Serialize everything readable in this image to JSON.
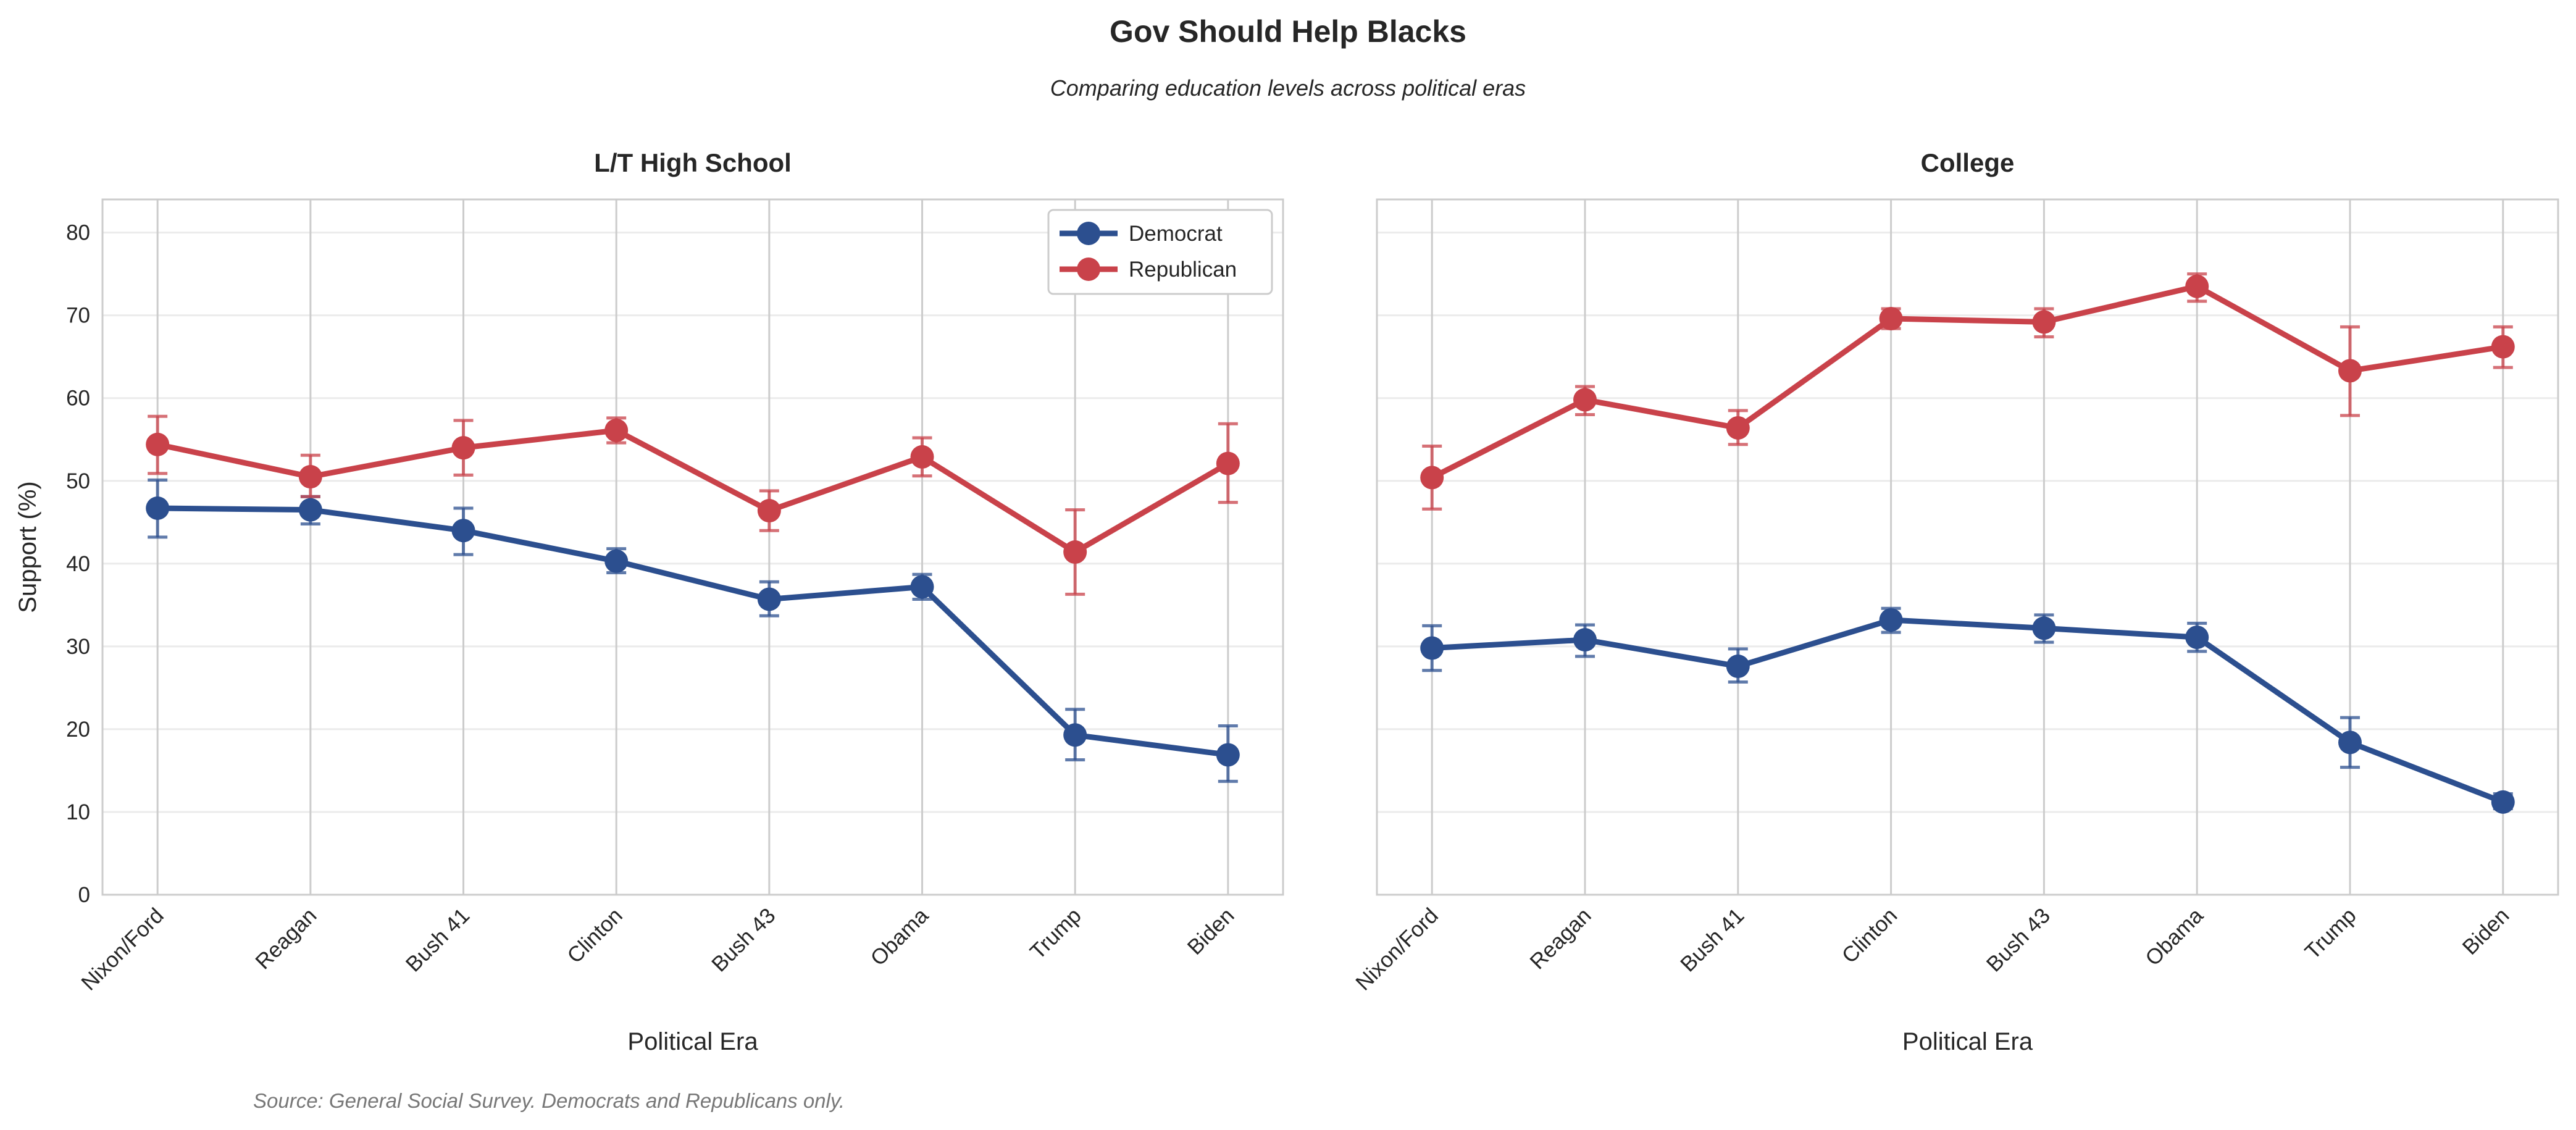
{
  "chart_data": {
    "type": "line",
    "title": "Gov Should Help Blacks",
    "subtitle": "Comparing education levels across political eras",
    "source": "Source: General Social Survey. Democrats and Republicans only.",
    "colors": {
      "Democrat": "#2c4f8f",
      "Republican": "#c9424a"
    },
    "shared_ylabel": "Support (%)",
    "ylim": [
      0,
      84
    ],
    "yticks": [
      0,
      10,
      20,
      30,
      40,
      50,
      60,
      70,
      80
    ],
    "grid": true,
    "legend": {
      "placement": "top-right",
      "panel": 0,
      "entries": [
        "Democrat",
        "Republican"
      ]
    },
    "panels": [
      {
        "title": "L/T High School",
        "xlabel": "Political Era",
        "categories": [
          "Nixon/Ford",
          "Reagan",
          "Bush 41",
          "Clinton",
          "Bush 43",
          "Obama",
          "Trump",
          "Biden"
        ],
        "series": [
          {
            "name": "Democrat",
            "values": [
              46.7,
              46.5,
              44.0,
              40.3,
              35.7,
              37.2,
              19.3,
              16.9
            ],
            "err_low": [
              43.2,
              44.8,
              41.1,
              38.9,
              33.7,
              35.7,
              16.3,
              13.7
            ],
            "err_high": [
              50.1,
              48.1,
              46.7,
              41.8,
              37.8,
              38.7,
              22.4,
              20.4
            ]
          },
          {
            "name": "Republican",
            "values": [
              54.4,
              50.5,
              54.0,
              56.1,
              46.4,
              52.9,
              41.4,
              52.1
            ],
            "err_low": [
              50.9,
              48.1,
              50.7,
              54.6,
              44.0,
              50.6,
              36.3,
              47.4
            ],
            "err_high": [
              57.8,
              53.1,
              57.3,
              57.6,
              48.8,
              55.2,
              46.5,
              56.9
            ]
          }
        ]
      },
      {
        "title": "College",
        "xlabel": "Political Era",
        "categories": [
          "Nixon/Ford",
          "Reagan",
          "Bush 41",
          "Clinton",
          "Bush 43",
          "Obama",
          "Trump",
          "Biden"
        ],
        "series": [
          {
            "name": "Democrat",
            "values": [
              29.8,
              30.8,
              27.6,
              33.2,
              32.2,
              31.1,
              18.4,
              11.2
            ],
            "err_low": [
              27.1,
              28.8,
              25.7,
              31.7,
              30.5,
              29.4,
              15.4,
              10.4
            ],
            "err_high": [
              32.5,
              32.6,
              29.7,
              34.6,
              33.8,
              32.8,
              21.4,
              12.2
            ]
          },
          {
            "name": "Republican",
            "values": [
              50.4,
              59.8,
              56.4,
              69.6,
              69.2,
              73.5,
              63.3,
              66.2
            ],
            "err_low": [
              46.6,
              58.0,
              54.4,
              68.4,
              67.4,
              71.7,
              57.9,
              63.7
            ],
            "err_high": [
              54.2,
              61.4,
              58.5,
              70.8,
              70.8,
              75.0,
              68.6,
              68.6
            ]
          }
        ]
      }
    ]
  }
}
